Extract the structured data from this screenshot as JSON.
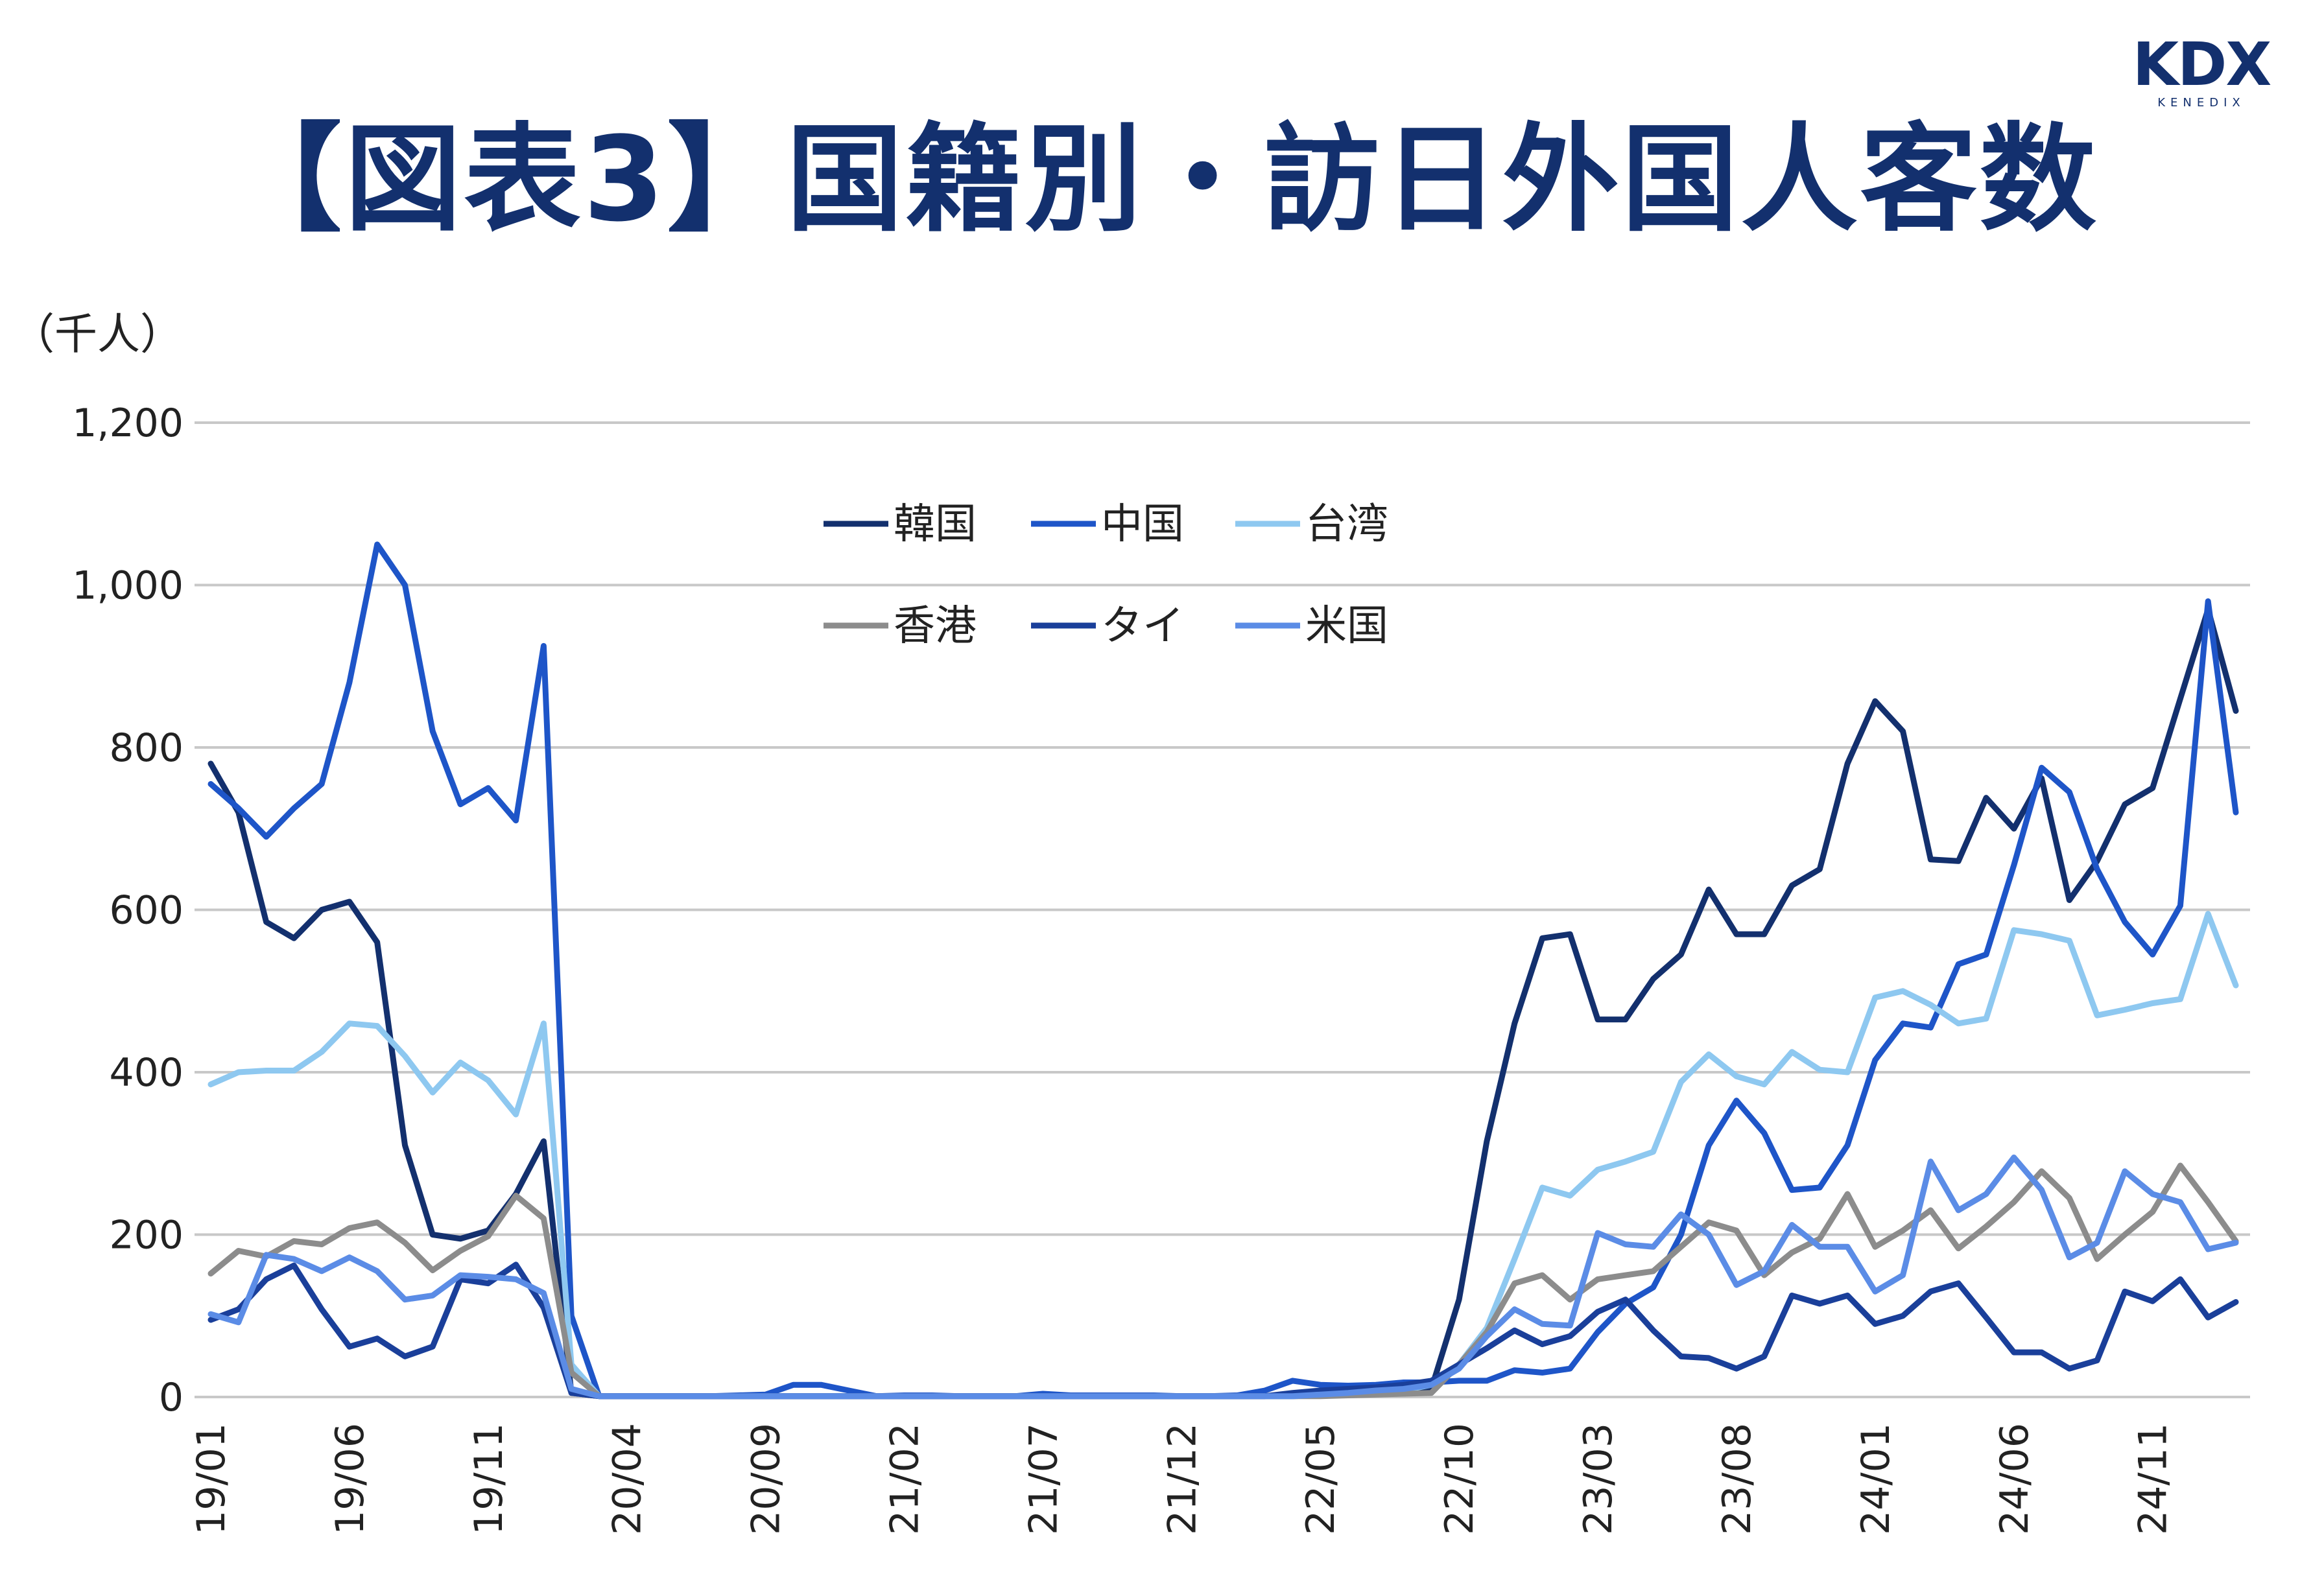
{
  "title": "【図表3】国籍別・訪日外国人客数",
  "logo": {
    "main": "KDX",
    "sub": "KENEDIX"
  },
  "chart_data": {
    "type": "line",
    "unit_label": "（千人）",
    "ylim": [
      0,
      1200
    ],
    "y_ticks": [
      "0",
      "200",
      "400",
      "600",
      "800",
      "1,000",
      "1,200"
    ],
    "y_tick_values": [
      0,
      200,
      400,
      600,
      800,
      1000,
      1200
    ],
    "x_tick_labels": [
      "19/01",
      "19/06",
      "19/11",
      "20/04",
      "20/09",
      "21/02",
      "21/07",
      "21/12",
      "22/05",
      "22/10",
      "23/03",
      "23/08",
      "24/01",
      "24/06",
      "24/11"
    ],
    "x_tick_indices": [
      0,
      5,
      10,
      15,
      20,
      25,
      30,
      35,
      40,
      45,
      50,
      55,
      60,
      65,
      70
    ],
    "grid": true,
    "legend_position": "top-center",
    "series": [
      {
        "name": "韓国",
        "color": "#13306e",
        "values": [
          780,
          720,
          585,
          565,
          600,
          610,
          560,
          310,
          200,
          195,
          205,
          250,
          315,
          5,
          1,
          1,
          1,
          1,
          1,
          1,
          1,
          1,
          1,
          1,
          1,
          1,
          1,
          1,
          1,
          1,
          1,
          1,
          1,
          1,
          1,
          1,
          1,
          1,
          1,
          1,
          2,
          3,
          5,
          7,
          10,
          120,
          315,
          460,
          565,
          570,
          465,
          465,
          515,
          545,
          625,
          570,
          570,
          630,
          650,
          780,
          857,
          820,
          662,
          660,
          738,
          700,
          762,
          612,
          660,
          730,
          750,
          860,
          970,
          845
        ]
      },
      {
        "name": "中国",
        "color": "#1e55c8",
        "values": [
          755,
          725,
          690,
          725,
          755,
          880,
          1050,
          1000,
          820,
          730,
          750,
          710,
          925,
          100,
          1,
          1,
          1,
          1,
          1,
          2,
          3,
          15,
          15,
          8,
          1,
          2,
          2,
          1,
          1,
          1,
          4,
          2,
          2,
          2,
          2,
          1,
          1,
          2,
          8,
          20,
          15,
          14,
          15,
          18,
          18,
          20,
          20,
          33,
          30,
          35,
          80,
          115,
          135,
          200,
          310,
          365,
          325,
          255,
          258,
          310,
          415,
          460,
          455,
          533,
          545,
          655,
          775,
          745,
          650,
          585,
          545,
          605,
          980,
          720
        ]
      },
      {
        "name": "台湾",
        "color": "#8ec8f0",
        "values": [
          385,
          400,
          402,
          402,
          425,
          460,
          457,
          420,
          375,
          412,
          390,
          348,
          460,
          40,
          1,
          1,
          1,
          1,
          1,
          1,
          1,
          1,
          1,
          1,
          1,
          1,
          1,
          1,
          1,
          1,
          1,
          1,
          1,
          1,
          1,
          1,
          1,
          1,
          1,
          1,
          2,
          3,
          5,
          8,
          15,
          40,
          85,
          170,
          258,
          248,
          280,
          290,
          302,
          388,
          422,
          395,
          385,
          425,
          403,
          400,
          492,
          500,
          483,
          460,
          466,
          575,
          570,
          562,
          470,
          477,
          485,
          490,
          595,
          507
        ]
      },
      {
        "name": "香港",
        "color": "#8c8c8c",
        "values": [
          152,
          180,
          173,
          192,
          188,
          208,
          215,
          190,
          156,
          180,
          198,
          248,
          220,
          30,
          1,
          1,
          1,
          1,
          1,
          1,
          1,
          1,
          1,
          1,
          1,
          1,
          1,
          1,
          1,
          1,
          1,
          1,
          1,
          1,
          1,
          1,
          1,
          1,
          1,
          1,
          1,
          2,
          3,
          4,
          5,
          40,
          80,
          140,
          150,
          120,
          145,
          150,
          155,
          185,
          215,
          205,
          150,
          178,
          195,
          250,
          185,
          205,
          230,
          183,
          210,
          240,
          278,
          245,
          170,
          200,
          228,
          285,
          240,
          192
        ]
      },
      {
        "name": "タイ",
        "color": "#1a3f9a",
        "values": [
          95,
          108,
          145,
          162,
          108,
          62,
          72,
          50,
          62,
          145,
          140,
          163,
          110,
          5,
          1,
          1,
          1,
          1,
          1,
          1,
          1,
          1,
          1,
          1,
          1,
          1,
          1,
          1,
          1,
          1,
          1,
          1,
          1,
          1,
          1,
          1,
          1,
          1,
          1,
          5,
          8,
          10,
          12,
          15,
          20,
          40,
          60,
          82,
          65,
          75,
          105,
          120,
          82,
          50,
          48,
          35,
          50,
          125,
          115,
          125,
          90,
          100,
          130,
          140,
          98,
          55,
          55,
          35,
          45,
          130,
          118,
          145,
          98,
          117
        ]
      },
      {
        "name": "米国",
        "color": "#5b8ce6",
        "values": [
          102,
          92,
          175,
          170,
          155,
          172,
          155,
          120,
          125,
          150,
          148,
          145,
          128,
          10,
          1,
          1,
          1,
          1,
          1,
          1,
          1,
          1,
          1,
          1,
          1,
          1,
          1,
          1,
          1,
          1,
          1,
          1,
          1,
          1,
          1,
          1,
          1,
          1,
          1,
          1,
          3,
          5,
          8,
          10,
          15,
          35,
          75,
          108,
          90,
          88,
          202,
          188,
          185,
          225,
          200,
          138,
          155,
          212,
          185,
          185,
          130,
          150,
          290,
          230,
          250,
          295,
          255,
          172,
          190,
          278,
          250,
          240,
          182,
          190
        ]
      }
    ]
  }
}
